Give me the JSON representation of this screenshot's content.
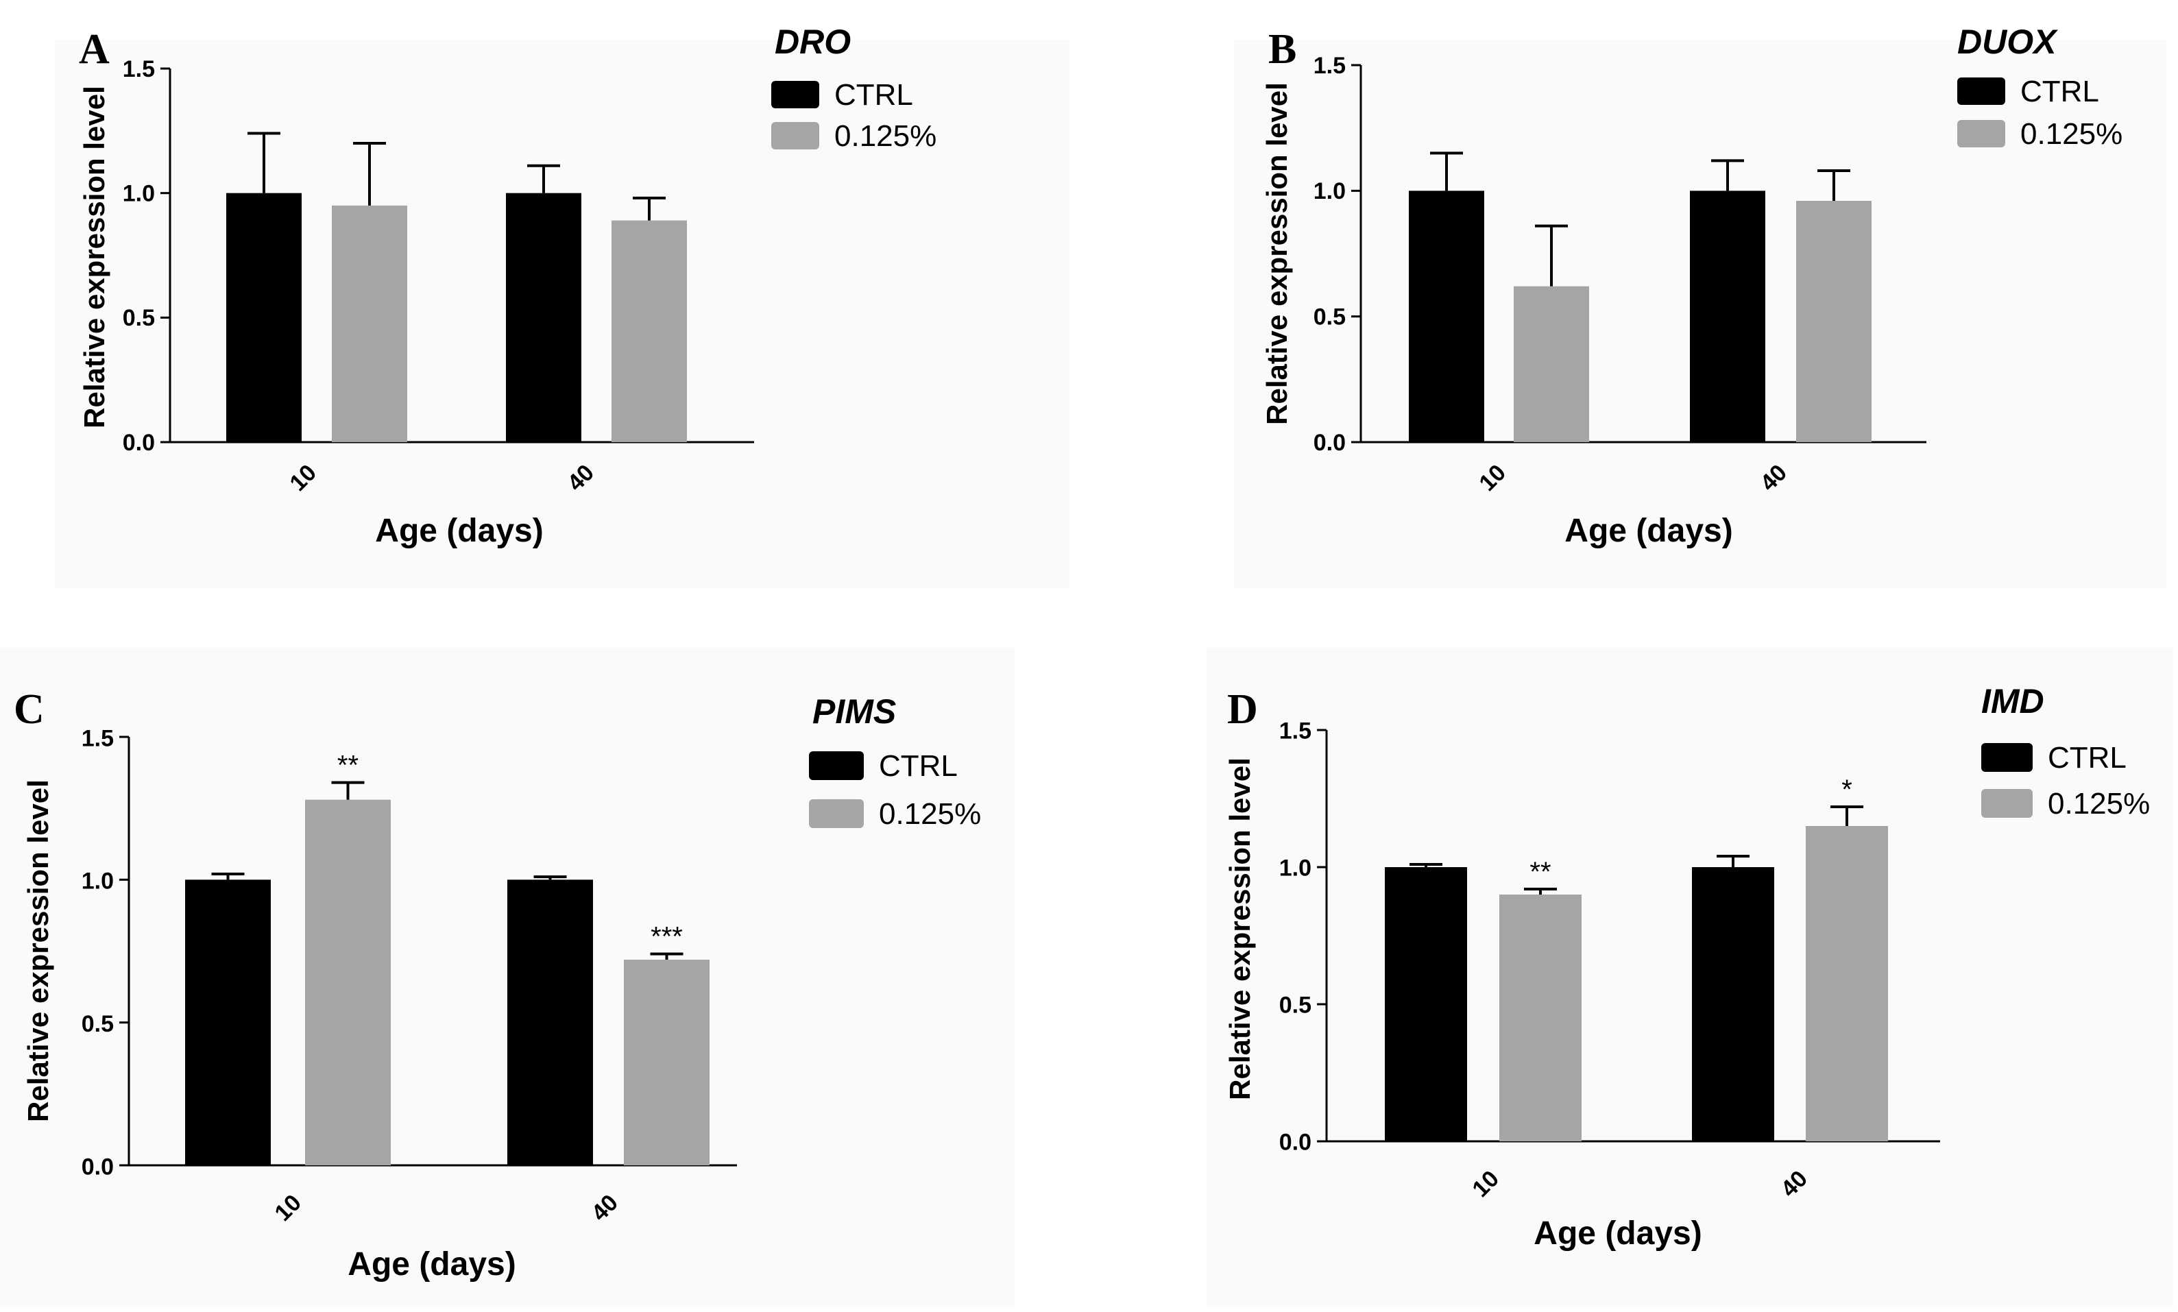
{
  "figure": {
    "legend_labels": [
      "CTRL",
      "0.125%"
    ],
    "colors": {
      "ctrl": "#000000",
      "treatment": "#a5a5a7",
      "panel_bg": "#fafafa",
      "axis": "#000000"
    }
  },
  "chart_data": [
    {
      "type": "bar",
      "panel": "A",
      "title": "DRO",
      "categories": [
        "10",
        "40"
      ],
      "series": [
        {
          "name": "CTRL",
          "values": [
            1.0,
            1.0
          ],
          "errors": [
            0.24,
            0.11
          ],
          "significance": [
            "",
            ""
          ]
        },
        {
          "name": "0.125%",
          "values": [
            0.95,
            0.89
          ],
          "errors": [
            0.25,
            0.09
          ],
          "significance": [
            "",
            ""
          ]
        }
      ],
      "xlabel": "Age (days)",
      "ylabel": "Relative expression level",
      "ylim": [
        0,
        1.5
      ],
      "yticks": [
        "0.0",
        "0.5",
        "1.0",
        "1.5"
      ],
      "legend_position": "top-right"
    },
    {
      "type": "bar",
      "panel": "B",
      "title": "DUOX",
      "categories": [
        "10",
        "40"
      ],
      "series": [
        {
          "name": "CTRL",
          "values": [
            1.0,
            1.0
          ],
          "errors": [
            0.15,
            0.12
          ],
          "significance": [
            "",
            ""
          ]
        },
        {
          "name": "0.125%",
          "values": [
            0.62,
            0.96
          ],
          "errors": [
            0.24,
            0.12
          ],
          "significance": [
            "",
            ""
          ]
        }
      ],
      "xlabel": "Age (days)",
      "ylabel": "Relative expression level",
      "ylim": [
        0,
        1.5
      ],
      "yticks": [
        "0.0",
        "0.5",
        "1.0",
        "1.5"
      ],
      "legend_position": "top-right"
    },
    {
      "type": "bar",
      "panel": "C",
      "title": "PIMS",
      "categories": [
        "10",
        "40"
      ],
      "series": [
        {
          "name": "CTRL",
          "values": [
            1.0,
            1.0
          ],
          "errors": [
            0.02,
            0.01
          ],
          "significance": [
            "",
            ""
          ]
        },
        {
          "name": "0.125%",
          "values": [
            1.28,
            0.72
          ],
          "errors": [
            0.06,
            0.02
          ],
          "significance": [
            "**",
            "***"
          ]
        }
      ],
      "xlabel": "Age (days)",
      "ylabel": "Relative expression level",
      "ylim": [
        0,
        1.5
      ],
      "yticks": [
        "0.0",
        "0.5",
        "1.0",
        "1.5"
      ],
      "legend_position": "top-right"
    },
    {
      "type": "bar",
      "panel": "D",
      "title": "IMD",
      "categories": [
        "10",
        "40"
      ],
      "series": [
        {
          "name": "CTRL",
          "values": [
            1.0,
            1.0
          ],
          "errors": [
            0.01,
            0.04
          ],
          "significance": [
            "",
            ""
          ]
        },
        {
          "name": "0.125%",
          "values": [
            0.9,
            1.15
          ],
          "errors": [
            0.02,
            0.07
          ],
          "significance": [
            "**",
            "*"
          ]
        }
      ],
      "xlabel": "Age (days)",
      "ylabel": "Relative expression level",
      "ylim": [
        0,
        1.5
      ],
      "yticks": [
        "0.0",
        "0.5",
        "1.0",
        "1.5"
      ],
      "legend_position": "top-right"
    }
  ]
}
